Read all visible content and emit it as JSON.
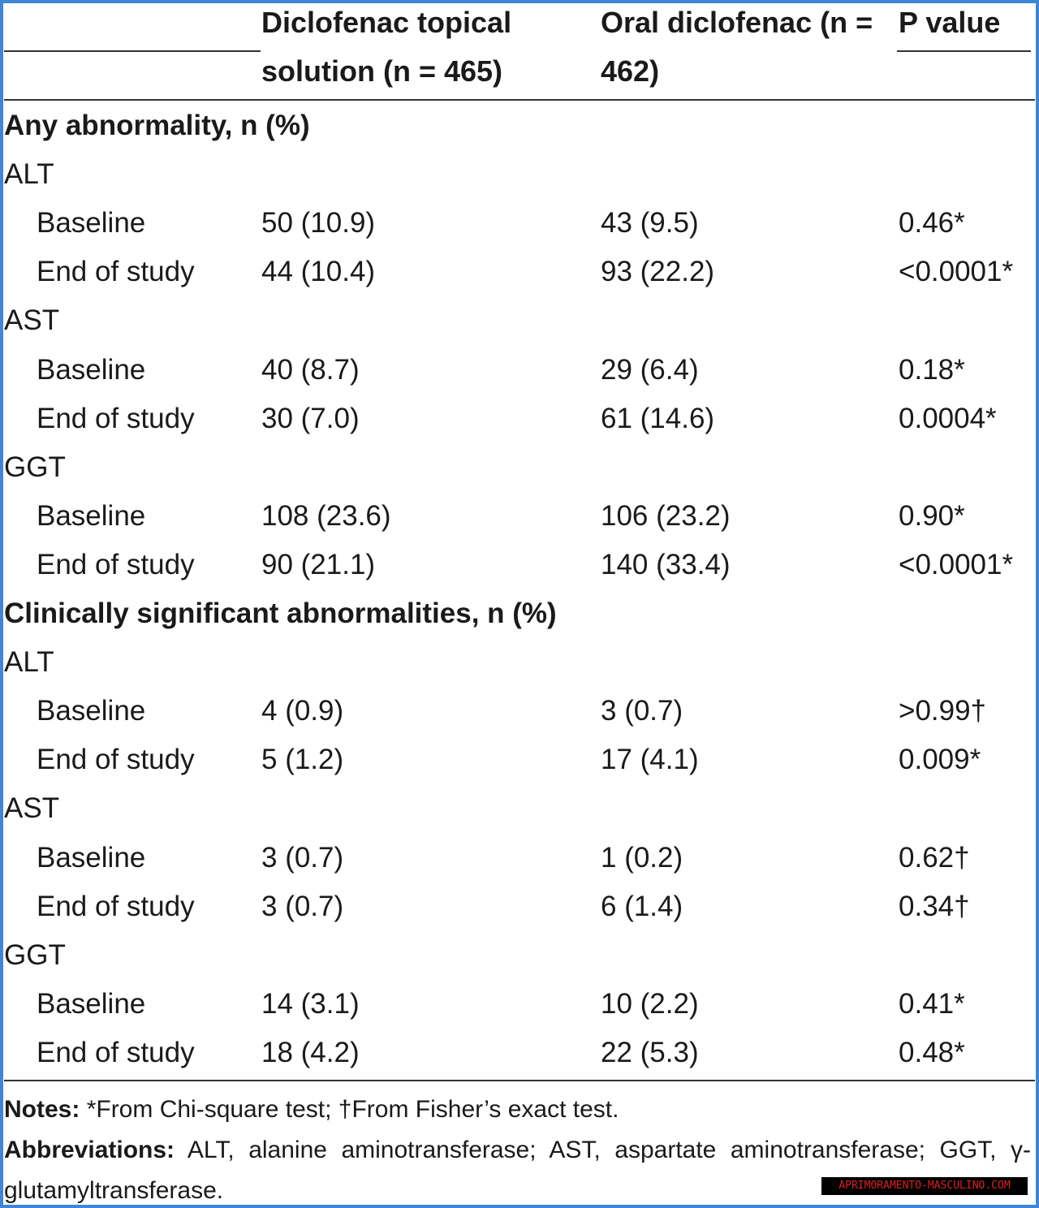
{
  "table": {
    "columns": [
      "Diclofenac topical solution (n = 465)",
      "Oral diclofenac (n = 462)",
      "P value"
    ],
    "sections": [
      {
        "title": "Any abnormality, n (%)",
        "groups": [
          {
            "name": "ALT",
            "rows": [
              {
                "label": "Baseline",
                "topical": "50 (10.9)",
                "oral": "43 (9.5)",
                "p": "0.46*"
              },
              {
                "label": "End of study",
                "topical": "44 (10.4)",
                "oral": "93 (22.2)",
                "p": "<0.0001*"
              }
            ]
          },
          {
            "name": "AST",
            "rows": [
              {
                "label": "Baseline",
                "topical": "40 (8.7)",
                "oral": "29 (6.4)",
                "p": "0.18*"
              },
              {
                "label": "End of study",
                "topical": "30 (7.0)",
                "oral": "61 (14.6)",
                "p": "0.0004*"
              }
            ]
          },
          {
            "name": "GGT",
            "rows": [
              {
                "label": "Baseline",
                "topical": "108 (23.6)",
                "oral": "106 (23.2)",
                "p": "0.90*"
              },
              {
                "label": "End of study",
                "topical": "90 (21.1)",
                "oral": "140 (33.4)",
                "p": "<0.0001*"
              }
            ]
          }
        ]
      },
      {
        "title": "Clinically significant abnormalities, n (%)",
        "groups": [
          {
            "name": "ALT",
            "rows": [
              {
                "label": "Baseline",
                "topical": "4 (0.9)",
                "oral": "3 (0.7)",
                "p": ">0.99†"
              },
              {
                "label": "End of study",
                "topical": "5 (1.2)",
                "oral": "17 (4.1)",
                "p": "0.009*"
              }
            ]
          },
          {
            "name": "AST",
            "rows": [
              {
                "label": "Baseline",
                "topical": "3 (0.7)",
                "oral": "1 (0.2)",
                "p": "0.62†"
              },
              {
                "label": "End of study",
                "topical": "3 (0.7)",
                "oral": "6 (1.4)",
                "p": "0.34†"
              }
            ]
          },
          {
            "name": "GGT",
            "rows": [
              {
                "label": "Baseline",
                "topical": "14 (3.1)",
                "oral": "10 (2.2)",
                "p": "0.41*"
              },
              {
                "label": "End of study",
                "topical": "18 (4.2)",
                "oral": "22 (5.3)",
                "p": "0.48*"
              }
            ]
          }
        ]
      }
    ]
  },
  "notes": {
    "label": "Notes:",
    "text": "*From Chi-square test; †From Fisher’s exact test."
  },
  "abbreviations": {
    "label": "Abbreviations:",
    "text": "ALT, alanine aminotransferase; AST, aspartate aminotransferase; GGT, γ-glutamyltransferase."
  },
  "watermark": "APRIMORAMENTO-MASCULINO.COM"
}
